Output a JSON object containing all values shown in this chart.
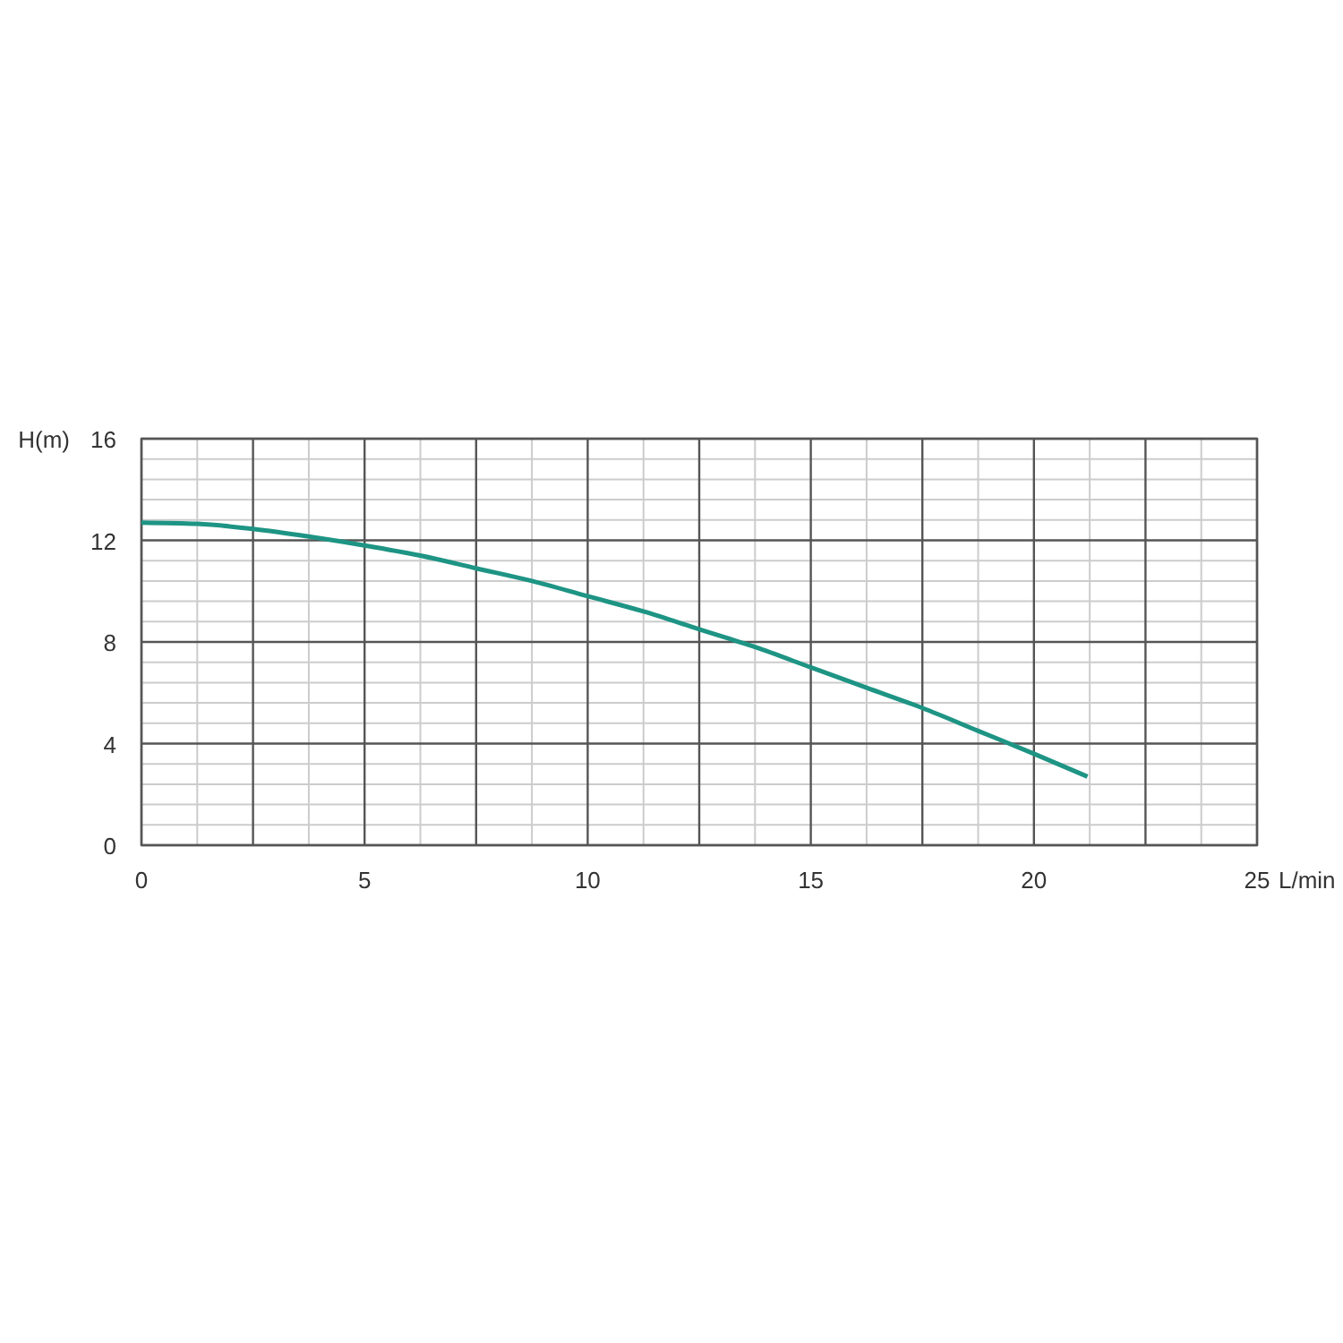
{
  "chart_data": {
    "type": "line",
    "xlabel": "L/min",
    "ylabel": "H(m)",
    "x": [
      0,
      1.25,
      2.5,
      3.75,
      5,
      6.25,
      7.5,
      8.75,
      10,
      11.25,
      12.5,
      13.75,
      15,
      16.25,
      17.5,
      18.75,
      20,
      21.2
    ],
    "series": [
      {
        "color": "#1e9484",
        "values": [
          12.7,
          12.65,
          12.45,
          12.15,
          11.8,
          11.4,
          10.9,
          10.4,
          9.8,
          9.2,
          8.5,
          7.8,
          7.0,
          6.2,
          5.4,
          4.5,
          3.6,
          2.7
        ]
      }
    ],
    "xlim": [
      0,
      25
    ],
    "ylim": [
      0,
      16
    ],
    "xticks": [
      0,
      {
        "value": 2.5,
        "label": null
      },
      5,
      {
        "value": 7.5,
        "label": null
      },
      10,
      {
        "value": 12.5,
        "label": null
      },
      15,
      {
        "value": 17.5,
        "label": null
      },
      20,
      {
        "value": 22.5,
        "label": null
      },
      25
    ],
    "yticks": [
      0,
      4,
      8,
      12,
      16
    ],
    "grid": true,
    "marker": "none",
    "line_style": "solid"
  }
}
